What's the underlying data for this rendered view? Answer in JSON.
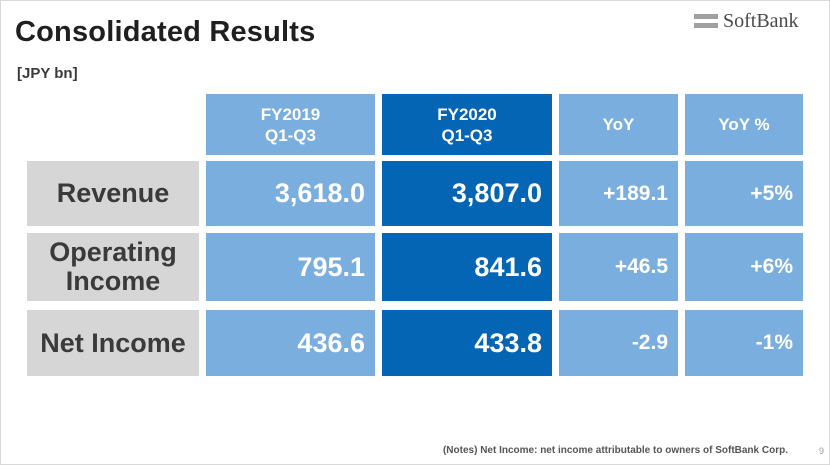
{
  "header": {
    "title": "Consolidated Results",
    "unit": "[JPY bn]",
    "logo_text": "SoftBank"
  },
  "table": {
    "columns": [
      {
        "line1": "FY2019",
        "line2": "Q1-Q3"
      },
      {
        "line1": "FY2020",
        "line2": "Q1-Q3"
      },
      {
        "line1": "YoY",
        "line2": ""
      },
      {
        "line1": "YoY %",
        "line2": ""
      }
    ],
    "rows": [
      {
        "label_line1": "Revenue",
        "label_line2": "",
        "fy2019": "3,618.0",
        "fy2020": "3,807.0",
        "yoy": "+189.1",
        "yoy_pct": "+5%"
      },
      {
        "label_line1": "Operating",
        "label_line2": "Income",
        "fy2019": "795.1",
        "fy2020": "841.6",
        "yoy": "+46.5",
        "yoy_pct": "+6%"
      },
      {
        "label_line1": "Net Income",
        "label_line2": "",
        "fy2019": "436.6",
        "fy2020": "433.8",
        "yoy": "-2.9",
        "yoy_pct": "-1%"
      }
    ]
  },
  "footer": {
    "notes": "(Notes) Net Income: net income attributable to owners of SoftBank Corp.",
    "page": "9"
  },
  "colors": {
    "light_blue": "#7aaede",
    "dark_blue": "#0565b5",
    "label_gray": "#d6d6d6",
    "logo_gray": "#a0a0a0"
  }
}
